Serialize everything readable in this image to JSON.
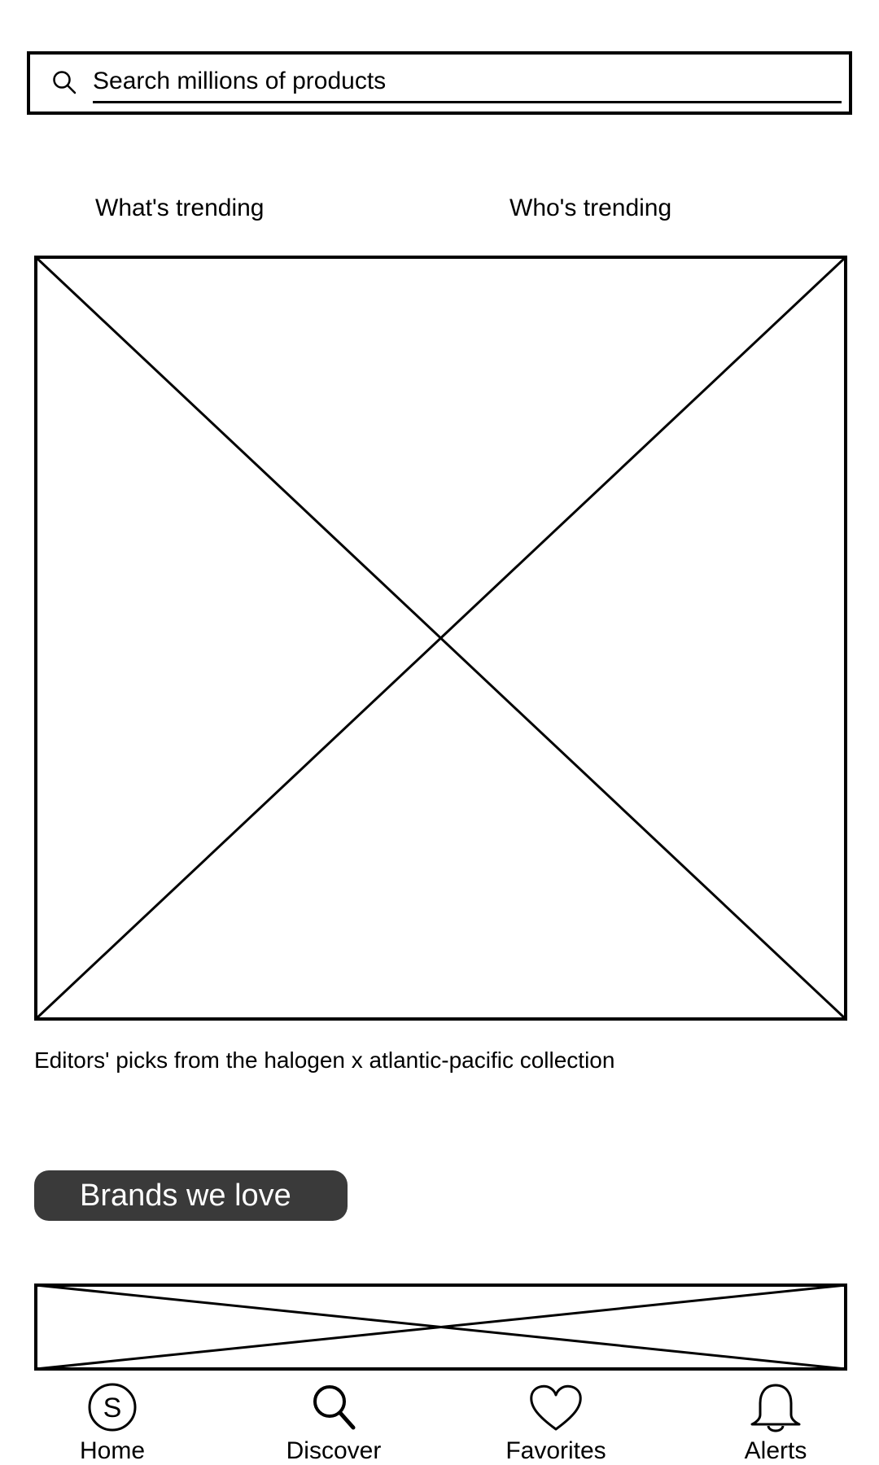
{
  "search": {
    "placeholder": "Search millions of products",
    "icon": "search-icon"
  },
  "tabs": [
    {
      "label": "What's trending"
    },
    {
      "label": "Who's trending"
    }
  ],
  "hero": {
    "image": "image-placeholder",
    "caption": "Editors' picks from the halogen x atlantic-pacific collection"
  },
  "brands": {
    "button_label": "Brands we love",
    "button_color": "#3a3a3a",
    "banner": "image-placeholder"
  },
  "bottom_nav": [
    {
      "label": "Home",
      "icon": "home-s-icon"
    },
    {
      "label": "Discover",
      "icon": "search-icon"
    },
    {
      "label": "Favorites",
      "icon": "heart-icon"
    },
    {
      "label": "Alerts",
      "icon": "bell-icon"
    }
  ]
}
